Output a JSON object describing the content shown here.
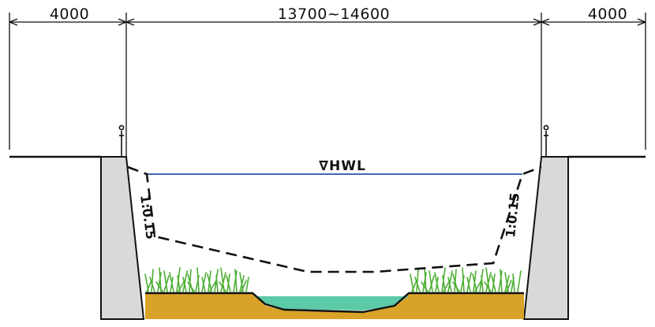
{
  "dimensions": {
    "left_width": "4000",
    "channel_width": "13700~14600",
    "right_width": "4000"
  },
  "water_level_label": "∇HWL",
  "slopes": {
    "left": "1:0.15",
    "right": "1:0.15"
  },
  "colors": {
    "line": "#111111",
    "wall_fill": "#d9d9d9",
    "soil_fill": "#d9a329",
    "water_fill": "#5cc9a7",
    "hwl_line": "#2b4fa0",
    "grass": "#4caf32"
  },
  "icons": [
    "railing-post-icon",
    "water-level-triangle-icon",
    "grass-clump-icon"
  ]
}
